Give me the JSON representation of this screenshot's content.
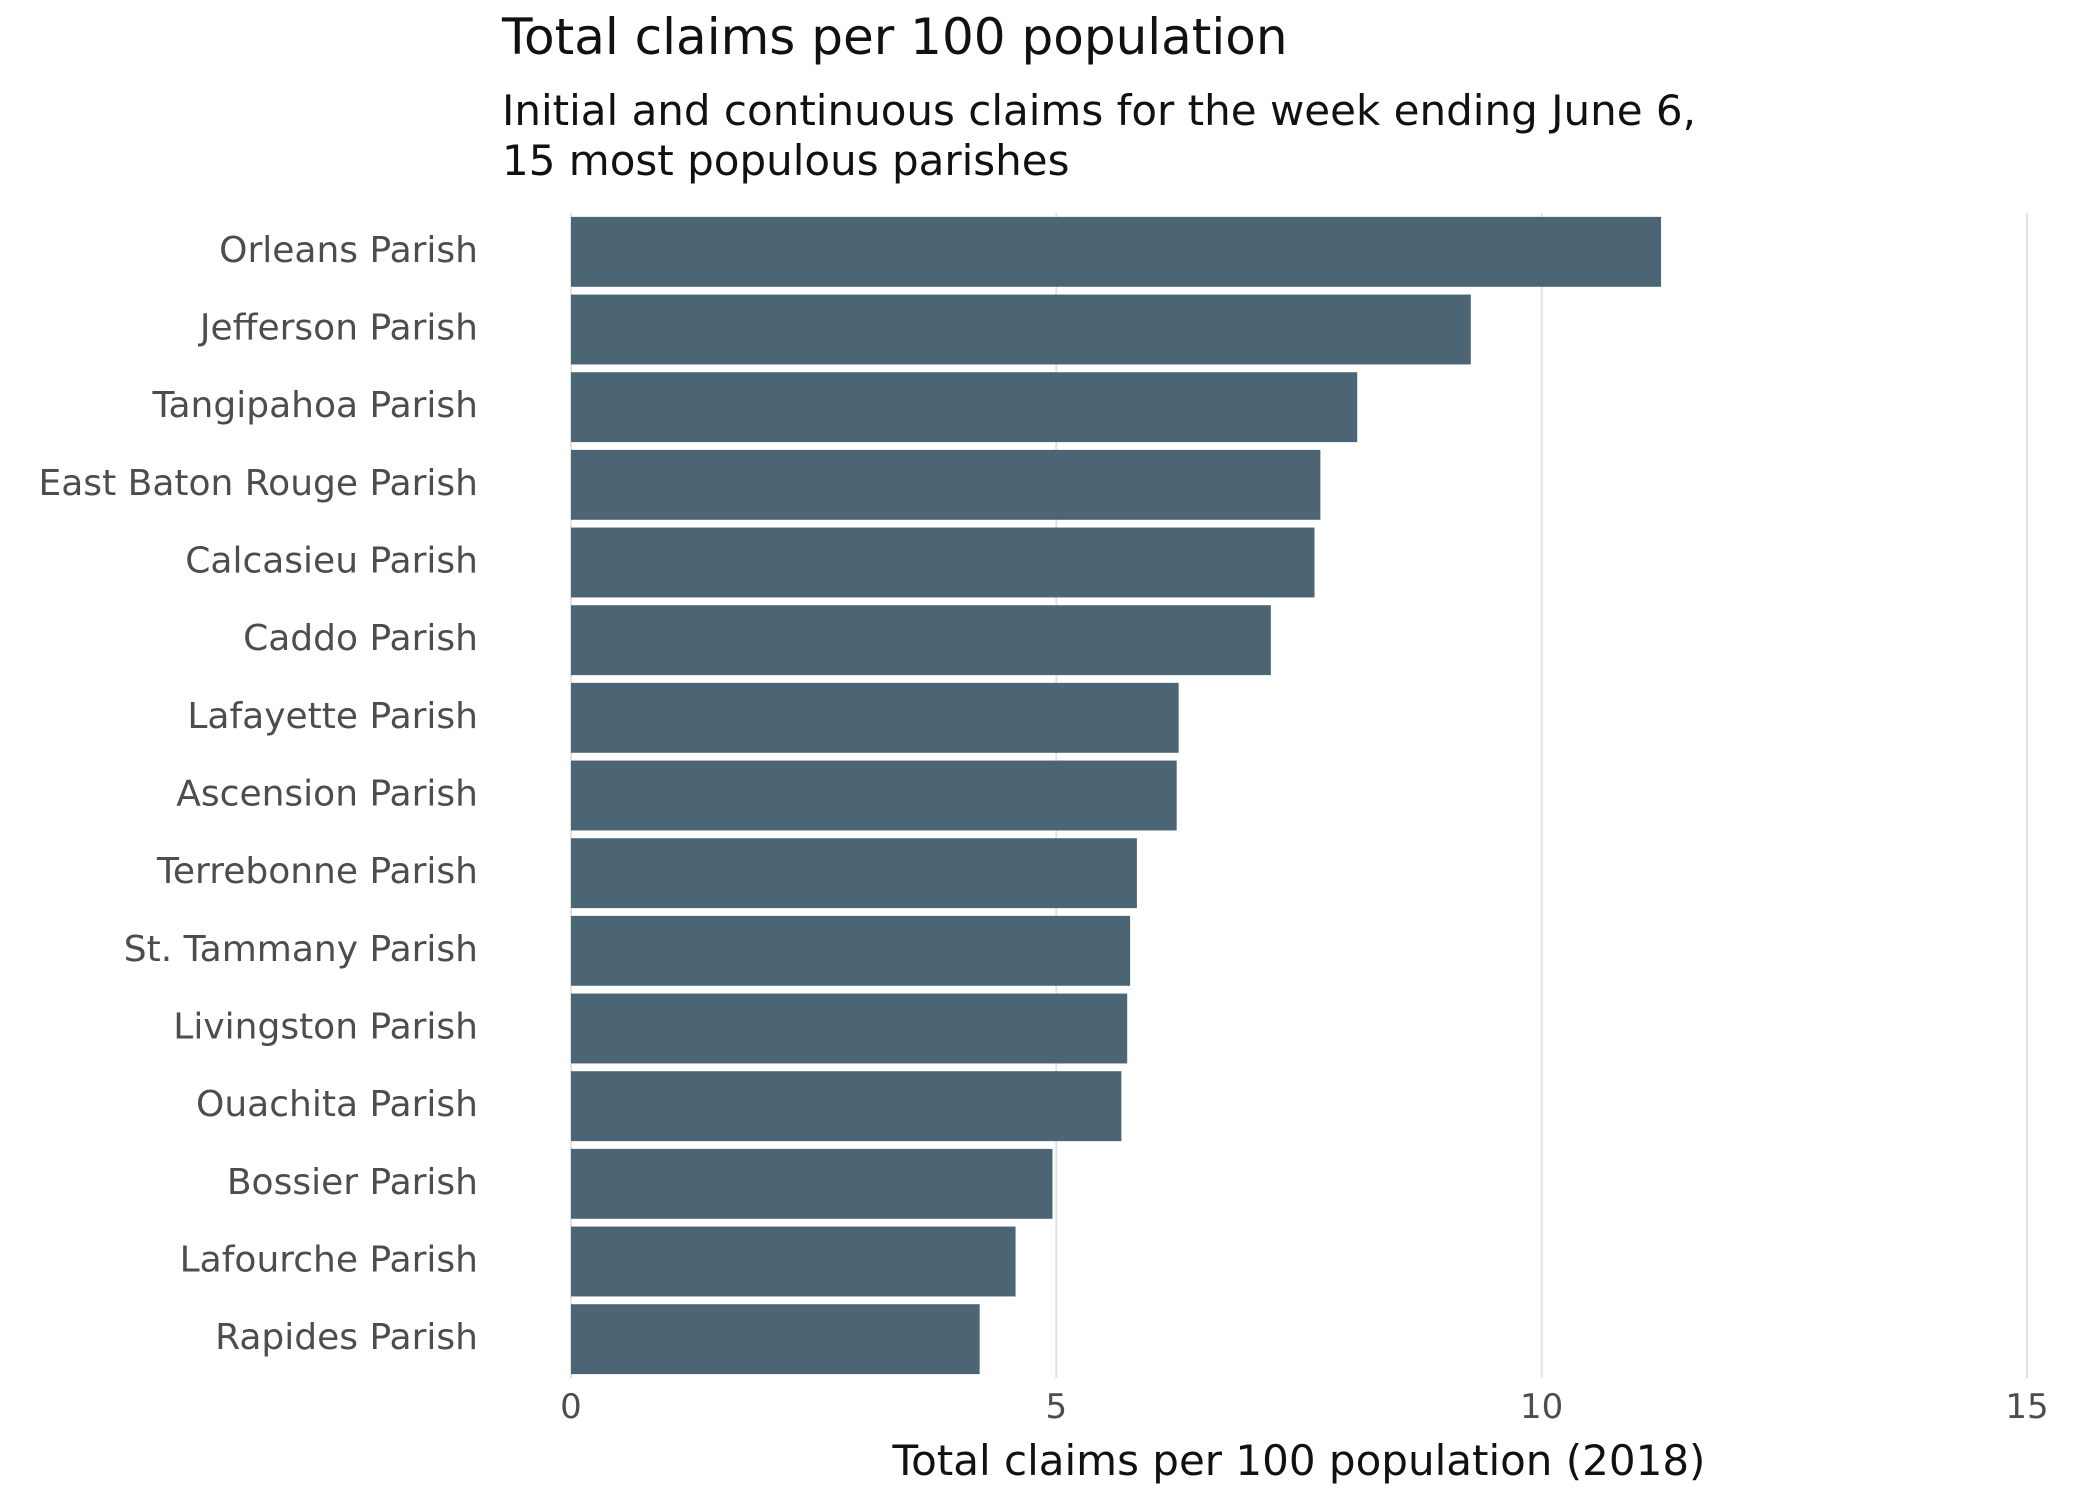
{
  "colors": {
    "bar": "#4b6575",
    "grid": "#e3e3e3",
    "tick_text": "#4d4d4d",
    "title_text": "#111111"
  },
  "chart_data": {
    "type": "bar",
    "orientation": "horizontal",
    "title": "Total claims per 100 population",
    "subtitle_lines": [
      "Initial and continuous claims for the week ending June 6,",
      "15 most populous parishes"
    ],
    "xlabel": "Total claims per 100 population (2018)",
    "ylabel": "",
    "xlim": [
      0,
      15
    ],
    "xticks": [
      0,
      5,
      10,
      15
    ],
    "grid": "vertical",
    "legend": "none",
    "categories": [
      "Orleans Parish",
      "Jefferson Parish",
      "Tangipahoa Parish",
      "East Baton Rouge Parish",
      "Calcasieu Parish",
      "Caddo Parish",
      "Lafayette Parish",
      "Ascension Parish",
      "Terrebonne Parish",
      "St. Tammany Parish",
      "Livingston Parish",
      "Ouachita Parish",
      "Bossier Parish",
      "Lafourche Parish",
      "Rapides Parish"
    ],
    "values": [
      11.23,
      9.27,
      8.1,
      7.72,
      7.66,
      7.21,
      6.26,
      6.24,
      5.83,
      5.76,
      5.73,
      5.67,
      4.96,
      4.58,
      4.21
    ]
  }
}
